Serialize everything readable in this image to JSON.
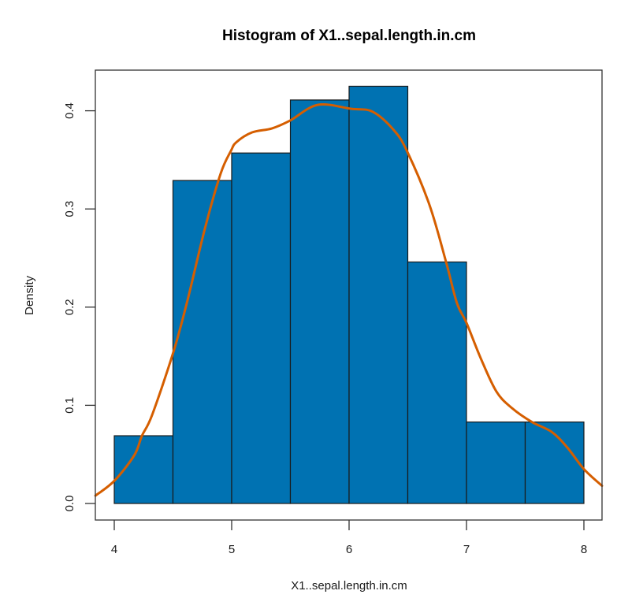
{
  "chart_data": {
    "type": "bar",
    "subtype": "histogram with density overlay",
    "title": "Histogram of X1..sepal.length.in.cm",
    "xlabel": "X1..sepal.length.in.cm",
    "ylabel": "Density",
    "xlim": [
      3.84,
      8.16
    ],
    "ylim": [
      -0.017,
      0.44
    ],
    "grid": false,
    "legend": null,
    "x_ticks": [
      4,
      5,
      6,
      7,
      8
    ],
    "y_ticks": [
      0.0,
      0.1,
      0.2,
      0.3,
      0.4
    ],
    "x_tick_labels": [
      "4",
      "5",
      "6",
      "7",
      "8"
    ],
    "y_tick_labels": [
      "0.0",
      "0.1",
      "0.2",
      "0.3",
      "0.4"
    ],
    "bins": [
      {
        "from": 4.0,
        "to": 4.5,
        "density": 0.069
      },
      {
        "from": 4.5,
        "to": 5.0,
        "density": 0.329
      },
      {
        "from": 5.0,
        "to": 5.5,
        "density": 0.357
      },
      {
        "from": 5.5,
        "to": 6.0,
        "density": 0.411
      },
      {
        "from": 6.0,
        "to": 6.5,
        "density": 0.425
      },
      {
        "from": 6.5,
        "to": 7.0,
        "density": 0.246
      },
      {
        "from": 7.0,
        "to": 7.5,
        "density": 0.083
      },
      {
        "from": 7.5,
        "to": 8.0,
        "density": 0.083
      }
    ],
    "categories": [
      "4-4.5",
      "4.5-5",
      "5-5.5",
      "5.5-6",
      "6-6.5",
      "6.5-7",
      "7-7.5",
      "7.5-8"
    ],
    "values": [
      0.069,
      0.329,
      0.357,
      0.411,
      0.425,
      0.246,
      0.083,
      0.083
    ],
    "series": [
      {
        "name": "density curve",
        "type": "line",
        "x": [
          3.84,
          4.0,
          4.17,
          4.236,
          4.322,
          4.503,
          4.624,
          4.772,
          4.906,
          4.993,
          5.04,
          5.174,
          5.342,
          5.497,
          5.732,
          6.02,
          6.201,
          6.383,
          6.497,
          6.685,
          6.826,
          6.919,
          7.0,
          7.121,
          7.255,
          7.389,
          7.557,
          7.725,
          7.859,
          8.0,
          8.154
        ],
        "y": [
          0.008,
          0.023,
          0.049,
          0.069,
          0.09,
          0.154,
          0.207,
          0.28,
          0.336,
          0.359,
          0.368,
          0.378,
          0.382,
          0.39,
          0.406,
          0.402,
          0.399,
          0.38,
          0.358,
          0.304,
          0.246,
          0.204,
          0.184,
          0.148,
          0.114,
          0.097,
          0.083,
          0.073,
          0.057,
          0.035,
          0.018
        ]
      }
    ],
    "colors": {
      "bar_fill": "#0072B2",
      "bar_border": "#1a1a1a",
      "curve": "#D55E00"
    }
  }
}
